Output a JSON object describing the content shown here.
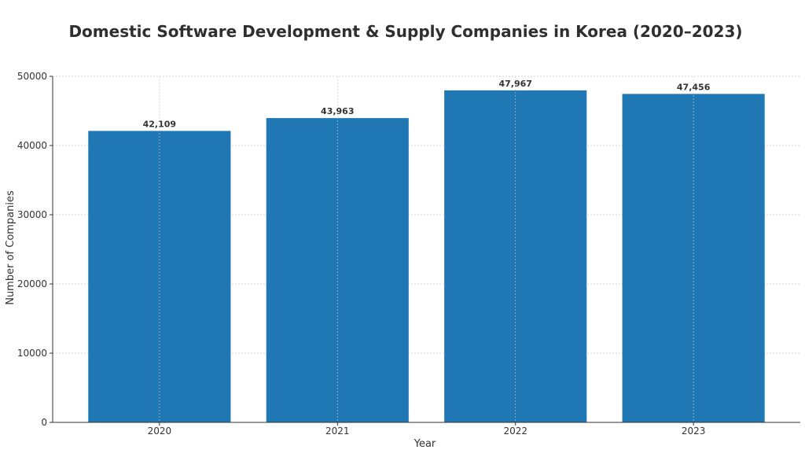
{
  "chart_data": {
    "type": "bar",
    "title": "Domestic Software Development & Supply Companies in Korea (2020–2023)",
    "xlabel": "Year",
    "ylabel": "Number of Companies",
    "categories": [
      "2020",
      "2021",
      "2022",
      "2023"
    ],
    "values": [
      42109,
      43963,
      47967,
      47456
    ],
    "value_labels": [
      "42,109",
      "43,963",
      "47,967",
      "47,456"
    ],
    "ylim": [
      0,
      50000
    ],
    "yticks": [
      0,
      10000,
      20000,
      30000,
      40000,
      50000
    ],
    "ytick_labels": [
      "0",
      "10000",
      "20000",
      "30000",
      "40000",
      "50000"
    ],
    "grid": true,
    "legend": "none",
    "bar_color": "#1f77b4"
  }
}
